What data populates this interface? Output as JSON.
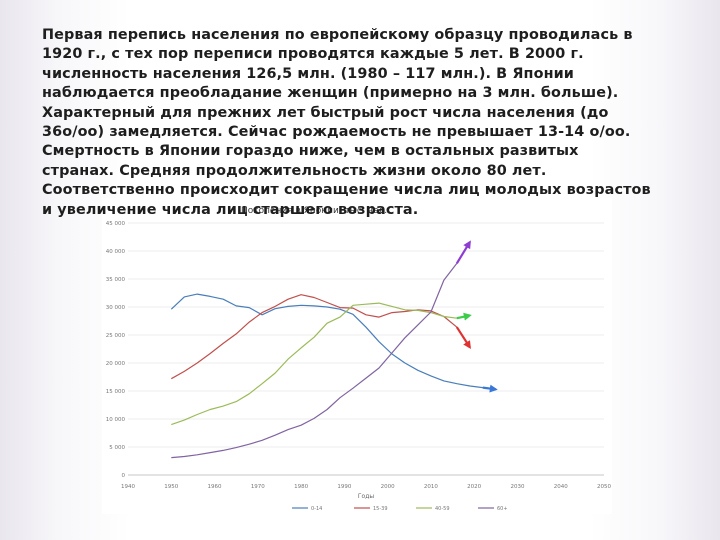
{
  "body_text": "Первая перепись населения по европейскому образцу проводилась в\n1920 г., с тех пор переписи проводятся каждые 5 лет. В 2000 г.\nчисленность населения 126,5 млн. (1980 – 117 млн.). В Японии\nнаблюдается преобладание женщин (примерно на 3 млн. больше).\nХарактерный для прежних лет быстрый рост числа населения (до\n36o/oo) замедляется. Сейчас рождаемость не превышает 13-14 o/oo.\nСмертность в Японии гораздо ниже, чем в остальных развитых\nстранах. Средняя продолжительность жизни около 80 лет.\nСоответственно происходит сокращение числа лиц молодых возрастов\nи увеличение числа лиц старшего возраста.",
  "chart_data": {
    "type": "line",
    "title": "Поколения в Японии, тыс. чел.",
    "xlabel": "Годы",
    "ylabel": "",
    "xlim": [
      1940,
      2050
    ],
    "ylim": [
      0,
      45000
    ],
    "x_ticks": [
      "1940",
      "1950",
      "1960",
      "1970",
      "1980",
      "1990",
      "2000",
      "2010",
      "2020",
      "2030",
      "2040",
      "2050"
    ],
    "y_ticks": [
      "0",
      "5 000",
      "10 000",
      "15 000",
      "20 000",
      "25 000",
      "30 000",
      "35 000",
      "40 000",
      "45 000"
    ],
    "legend_position": "bottom",
    "grid": true,
    "series": [
      {
        "name": "0-14",
        "color": "#4a7ebb",
        "arrow_color": "#3a78d8",
        "x": [
          1950,
          1953,
          1956,
          1959,
          1962,
          1965,
          1968,
          1971,
          1974,
          1977,
          1980,
          1983,
          1986,
          1989,
          1992,
          1995,
          1998,
          2001,
          2004,
          2007,
          2010,
          2013,
          2016,
          2019,
          2022,
          2025
        ],
        "y": [
          29600,
          31800,
          32300,
          31900,
          31400,
          30200,
          29900,
          28600,
          29700,
          30100,
          30300,
          30200,
          30000,
          29600,
          28700,
          26400,
          23800,
          21600,
          20000,
          18700,
          17700,
          16800,
          16300,
          15900,
          15600,
          15300
        ]
      },
      {
        "name": "15-39",
        "color": "#c0504d",
        "arrow_color": "#e03232",
        "x": [
          1950,
          1953,
          1956,
          1959,
          1962,
          1965,
          1968,
          1971,
          1974,
          1977,
          1980,
          1983,
          1986,
          1989,
          1992,
          1995,
          1998,
          2001,
          2004,
          2007,
          2010,
          2013,
          2016,
          2019
        ],
        "y": [
          17200,
          18500,
          20000,
          21700,
          23500,
          25200,
          27300,
          29000,
          30100,
          31400,
          32200,
          31700,
          30800,
          29900,
          29800,
          28600,
          28200,
          29000,
          29200,
          29500,
          29300,
          28300,
          26400,
          22800
        ]
      },
      {
        "name": "40-59",
        "color": "#9bbb59",
        "arrow_color": "#3ccc4a",
        "x": [
          1950,
          1953,
          1956,
          1959,
          1962,
          1965,
          1968,
          1971,
          1974,
          1977,
          1980,
          1983,
          1986,
          1989,
          1992,
          1995,
          1998,
          2001,
          2004,
          2007,
          2010,
          2013,
          2016,
          2019
        ],
        "y": [
          9000,
          9800,
          10800,
          11700,
          12300,
          13100,
          14500,
          16300,
          18200,
          20700,
          22700,
          24600,
          27100,
          28200,
          30300,
          30500,
          30700,
          30100,
          29500,
          29400,
          29000,
          28300,
          28000,
          28500
        ]
      },
      {
        "name": "60+",
        "color": "#8064a2",
        "arrow_color": "#8e3cd2",
        "x": [
          1950,
          1953,
          1956,
          1959,
          1962,
          1965,
          1968,
          1971,
          1974,
          1977,
          1980,
          1983,
          1986,
          1989,
          1992,
          1995,
          1998,
          2001,
          2004,
          2007,
          2010,
          2013,
          2016,
          2019
        ],
        "y": [
          3100,
          3300,
          3600,
          4000,
          4400,
          4900,
          5500,
          6200,
          7100,
          8100,
          8900,
          10100,
          11700,
          13800,
          15500,
          17300,
          19100,
          21800,
          24500,
          26800,
          29100,
          34800,
          37800,
          41600
        ]
      }
    ]
  }
}
